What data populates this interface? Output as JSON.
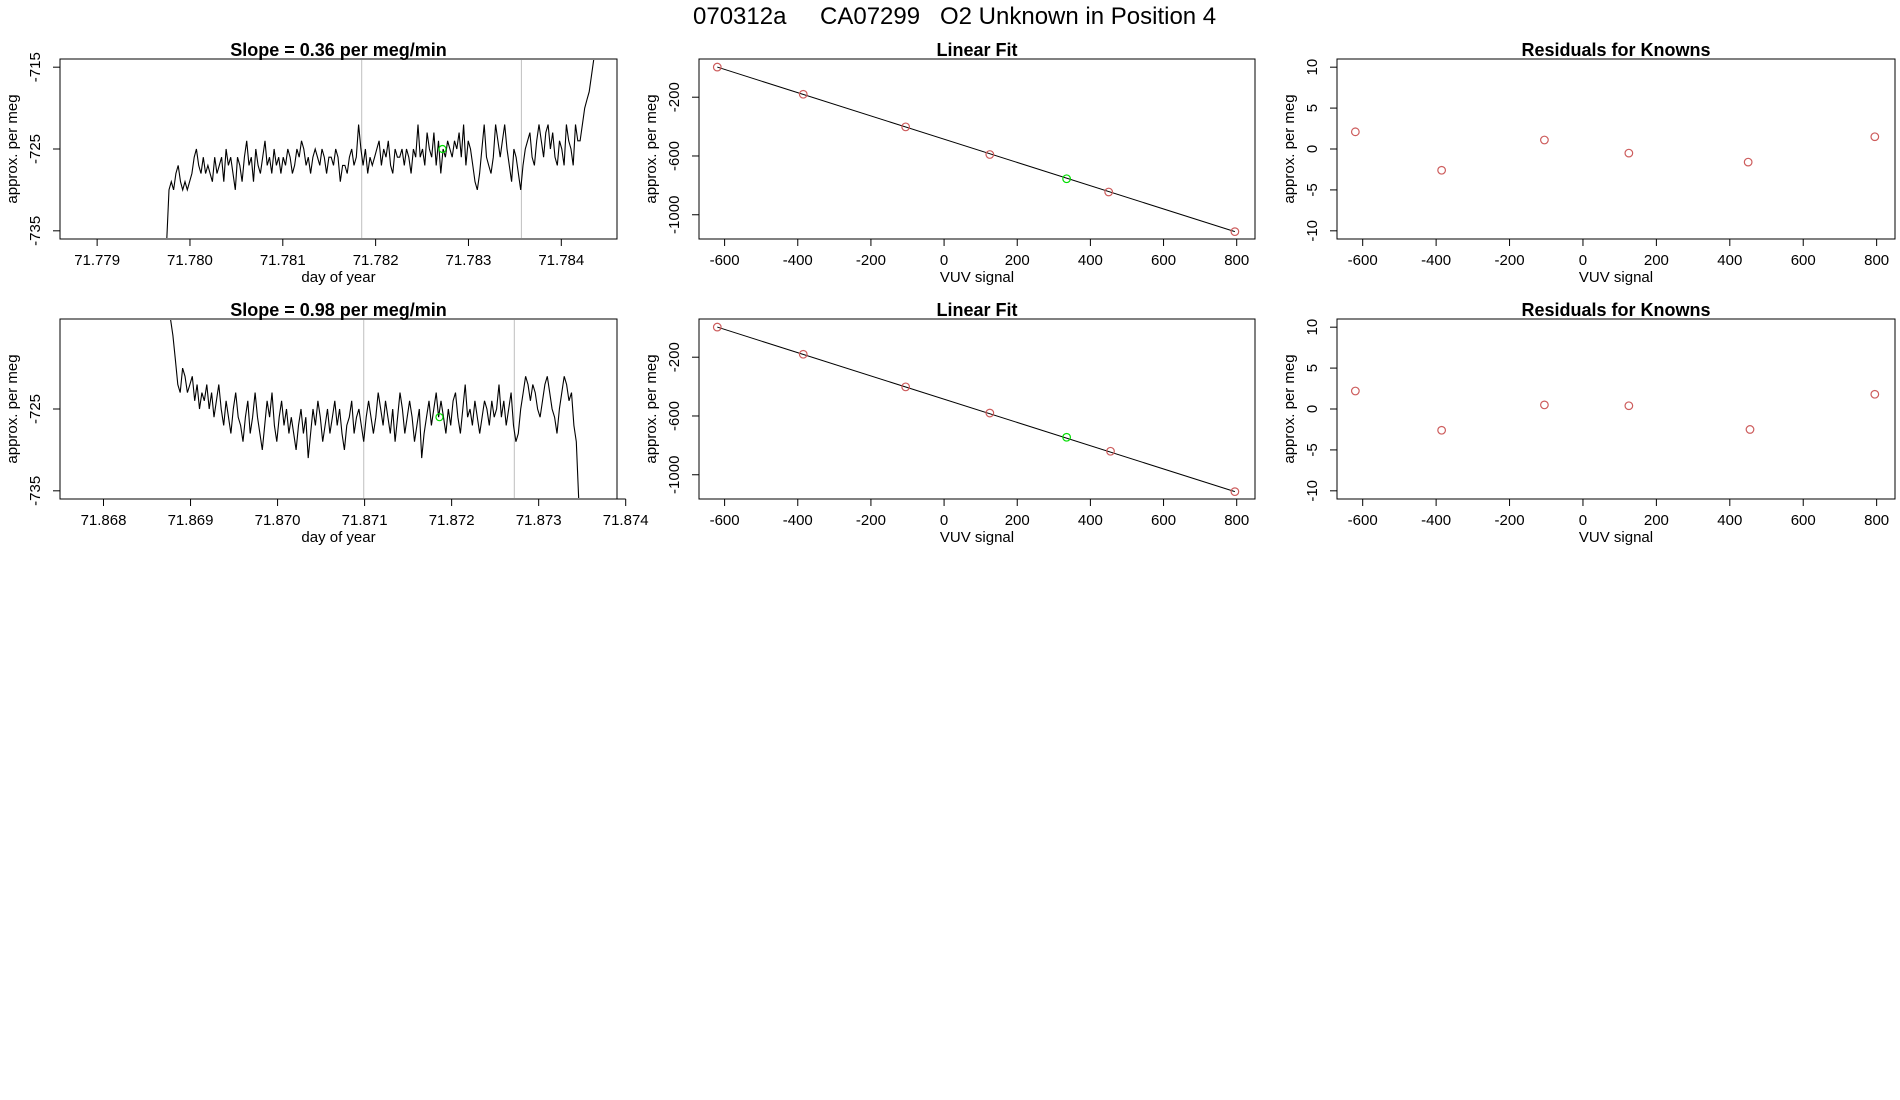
{
  "page": {
    "title_parts": [
      "070312a",
      "CA07299",
      "O2 Unknown in Position  4"
    ]
  },
  "colors": {
    "line": "#000000",
    "axis": "#000000",
    "ref_line": "#bebebe",
    "known_point": "#cd5c5c",
    "unknown_point": "#00dd00"
  },
  "chart_data": [
    {
      "id": "ts1",
      "type": "line",
      "title": "Slope =  0.36  per meg/min",
      "xlabel": "day of year",
      "ylabel": "approx. per meg",
      "xlim": [
        71.7786,
        71.7846
      ],
      "ylim": [
        -736,
        -714
      ],
      "xticks": [
        "71.779",
        "71.780",
        "71.781",
        "71.782",
        "71.783",
        "71.784"
      ],
      "xtick_values": [
        71.779,
        71.78,
        71.781,
        71.782,
        71.783,
        71.784
      ],
      "yticks": [
        "-715",
        "-725",
        "-735"
      ],
      "ytick_values": [
        -715,
        -725,
        -735
      ],
      "vlines": [
        71.78185,
        71.78357
      ],
      "series": {
        "x_start": 71.77975,
        "x_end": 71.78435,
        "values": [
          -736,
          -730,
          -729,
          -730,
          -728,
          -727,
          -729,
          -730,
          -729,
          -730,
          -729,
          -728,
          -726,
          -725,
          -727,
          -728,
          -726,
          -728,
          -727,
          -728,
          -729,
          -726,
          -728,
          -727,
          -726,
          -729,
          -725,
          -727,
          -726,
          -728,
          -730,
          -726,
          -727,
          -729,
          -726,
          -724,
          -727,
          -726,
          -729,
          -725,
          -727,
          -728,
          -726,
          -724,
          -727,
          -726,
          -728,
          -725,
          -727,
          -726,
          -728,
          -726,
          -727,
          -725,
          -726,
          -728,
          -727,
          -725,
          -726,
          -724,
          -725,
          -727,
          -726,
          -728,
          -726,
          -725,
          -726,
          -727,
          -725,
          -726,
          -728,
          -726,
          -726,
          -727,
          -725,
          -726,
          -729,
          -727,
          -727,
          -728,
          -726,
          -725,
          -727,
          -726,
          -722,
          -725,
          -727,
          -725,
          -728,
          -726,
          -727,
          -726,
          -725,
          -724,
          -727,
          -725,
          -726,
          -724,
          -727,
          -728,
          -725,
          -726,
          -726,
          -725,
          -727,
          -725,
          -726,
          -728,
          -725,
          -726,
          -722,
          -726,
          -725,
          -727,
          -723,
          -725,
          -726,
          -723,
          -727,
          -724,
          -728,
          -725,
          -726,
          -724,
          -725,
          -726,
          -724,
          -725,
          -723,
          -726,
          -722,
          -727,
          -724,
          -725,
          -727,
          -729,
          -730,
          -728,
          -725,
          -722,
          -726,
          -727,
          -728,
          -726,
          -722,
          -724,
          -726,
          -724,
          -722,
          -725,
          -727,
          -729,
          -725,
          -726,
          -728,
          -730,
          -727,
          -725,
          -724,
          -723,
          -726,
          -727,
          -724,
          -722,
          -724,
          -726,
          -723,
          -722,
          -725,
          -723,
          -726,
          -727,
          -724,
          -725,
          -727,
          -722,
          -724,
          -725,
          -727,
          -722,
          -724,
          -724,
          -722,
          -720,
          -719,
          -718,
          -716,
          -714
        ]
      },
      "unknown_marker": {
        "x": 71.78272,
        "y": -725
      }
    },
    {
      "id": "fit1",
      "type": "scatter",
      "title": "Linear Fit",
      "xlabel": "VUV signal",
      "ylabel": "approx. per meg",
      "xlim": [
        -670,
        850
      ],
      "ylim": [
        -1165,
        60
      ],
      "xticks": [
        "-600",
        "-400",
        "-200",
        "0",
        "200",
        "400",
        "600",
        "800"
      ],
      "xtick_values": [
        -600,
        -400,
        -200,
        0,
        200,
        400,
        600,
        800
      ],
      "yticks": [
        "-200",
        "-600",
        "-1000"
      ],
      "ytick_values": [
        -200,
        -600,
        -1000
      ],
      "fit_line": {
        "x": [
          -620,
          795
        ],
        "y": [
          5,
          -1115
        ]
      },
      "known_points": {
        "x": [
          -620,
          -385,
          -105,
          125,
          450,
          795
        ],
        "y": [
          5,
          -180,
          -402,
          -590,
          -845,
          -1115
        ]
      },
      "unknown_point": {
        "x": 335,
        "y": -755
      }
    },
    {
      "id": "res1",
      "type": "scatter",
      "title": "Residuals for Knowns",
      "xlabel": "VUV signal",
      "ylabel": "approx. per meg",
      "xlim": [
        -670,
        850
      ],
      "ylim": [
        -11,
        11
      ],
      "xticks": [
        "-600",
        "-400",
        "-200",
        "0",
        "200",
        "400",
        "600",
        "800"
      ],
      "xtick_values": [
        -600,
        -400,
        -200,
        0,
        200,
        400,
        600,
        800
      ],
      "yticks": [
        "10",
        "5",
        "0",
        "-5",
        "-10"
      ],
      "ytick_values": [
        10,
        5,
        0,
        -5,
        -10
      ],
      "known_points": {
        "x": [
          -620,
          -385,
          -105,
          125,
          450,
          795
        ],
        "y": [
          2.1,
          -2.6,
          1.1,
          -0.5,
          -1.6,
          1.5
        ]
      }
    },
    {
      "id": "ts2",
      "type": "line",
      "title": "Slope =  0.98  per meg/min",
      "xlabel": "day of year",
      "ylabel": "approx. per meg",
      "xlim": [
        71.8675,
        71.8739
      ],
      "ylim": [
        -736,
        -714
      ],
      "xticks": [
        "71.868",
        "71.869",
        "71.870",
        "71.871",
        "71.872",
        "71.873",
        "71.874"
      ],
      "xtick_values": [
        71.868,
        71.869,
        71.87,
        71.871,
        71.872,
        71.873,
        71.874
      ],
      "yticks": [
        "-725",
        "-735"
      ],
      "ytick_values": [
        -725,
        -735
      ],
      "vlines": [
        71.87099,
        71.87272
      ],
      "series": {
        "x_start": 71.86877,
        "x_end": 71.87346,
        "values": [
          -714,
          -716,
          -719,
          -722,
          -723,
          -720,
          -721,
          -723,
          -722,
          -721,
          -724,
          -722,
          -725,
          -723,
          -724,
          -722,
          -725,
          -723,
          -726,
          -724,
          -722,
          -725,
          -727,
          -724,
          -726,
          -728,
          -725,
          -723,
          -726,
          -727,
          -729,
          -726,
          -724,
          -728,
          -726,
          -723,
          -726,
          -728,
          -730,
          -727,
          -724,
          -726,
          -723,
          -727,
          -729,
          -726,
          -724,
          -727,
          -725,
          -728,
          -726,
          -728,
          -730,
          -727,
          -725,
          -728,
          -726,
          -731,
          -728,
          -725,
          -727,
          -724,
          -726,
          -729,
          -727,
          -725,
          -728,
          -726,
          -724,
          -727,
          -725,
          -728,
          -730,
          -727,
          -726,
          -724,
          -728,
          -726,
          -725,
          -727,
          -729,
          -726,
          -724,
          -726,
          -728,
          -726,
          -723,
          -725,
          -727,
          -724,
          -726,
          -728,
          -725,
          -729,
          -726,
          -723,
          -725,
          -728,
          -726,
          -724,
          -726,
          -729,
          -727,
          -725,
          -731,
          -728,
          -726,
          -724,
          -727,
          -725,
          -723,
          -726,
          -724,
          -726,
          -728,
          -725,
          -727,
          -724,
          -723,
          -726,
          -728,
          -725,
          -722,
          -726,
          -725,
          -727,
          -724,
          -726,
          -728,
          -726,
          -724,
          -725,
          -727,
          -724,
          -726,
          -725,
          -722,
          -726,
          -724,
          -727,
          -725,
          -723,
          -727,
          -729,
          -728,
          -725,
          -723,
          -721,
          -722,
          -724,
          -722,
          -723,
          -725,
          -726,
          -724,
          -722,
          -721,
          -723,
          -725,
          -726,
          -728,
          -725,
          -723,
          -721,
          -722,
          -724,
          -723,
          -727,
          -729,
          -736
        ]
      },
      "unknown_marker": {
        "x": 71.87186,
        "y": -726
      }
    },
    {
      "id": "fit2",
      "type": "scatter",
      "title": "Linear Fit",
      "xlabel": "VUV signal",
      "ylabel": "approx. per meg",
      "xlim": [
        -670,
        850
      ],
      "ylim": [
        -1165,
        60
      ],
      "xticks": [
        "-600",
        "-400",
        "-200",
        "0",
        "200",
        "400",
        "600",
        "800"
      ],
      "xtick_values": [
        -600,
        -400,
        -200,
        0,
        200,
        400,
        600,
        800
      ],
      "yticks": [
        "-200",
        "-600",
        "-1000"
      ],
      "ytick_values": [
        -200,
        -600,
        -1000
      ],
      "fit_line": {
        "x": [
          -620,
          795
        ],
        "y": [
          5,
          -1115
        ]
      },
      "known_points": {
        "x": [
          -620,
          -385,
          -105,
          125,
          455,
          795
        ],
        "y": [
          5,
          -180,
          -402,
          -580,
          -840,
          -1115
        ]
      },
      "unknown_point": {
        "x": 335,
        "y": -745
      }
    },
    {
      "id": "res2",
      "type": "scatter",
      "title": "Residuals for Knowns",
      "xlabel": "VUV signal",
      "ylabel": "approx. per meg",
      "xlim": [
        -670,
        850
      ],
      "ylim": [
        -11,
        11
      ],
      "xticks": [
        "-600",
        "-400",
        "-200",
        "0",
        "200",
        "400",
        "600",
        "800"
      ],
      "xtick_values": [
        -600,
        -400,
        -200,
        0,
        200,
        400,
        600,
        800
      ],
      "yticks": [
        "10",
        "5",
        "0",
        "-5",
        "-10"
      ],
      "ytick_values": [
        10,
        5,
        0,
        -5,
        -10
      ],
      "known_points": {
        "x": [
          -620,
          -385,
          -105,
          125,
          455,
          795
        ],
        "y": [
          2.2,
          -2.6,
          0.5,
          0.4,
          -2.5,
          1.8
        ]
      }
    }
  ]
}
